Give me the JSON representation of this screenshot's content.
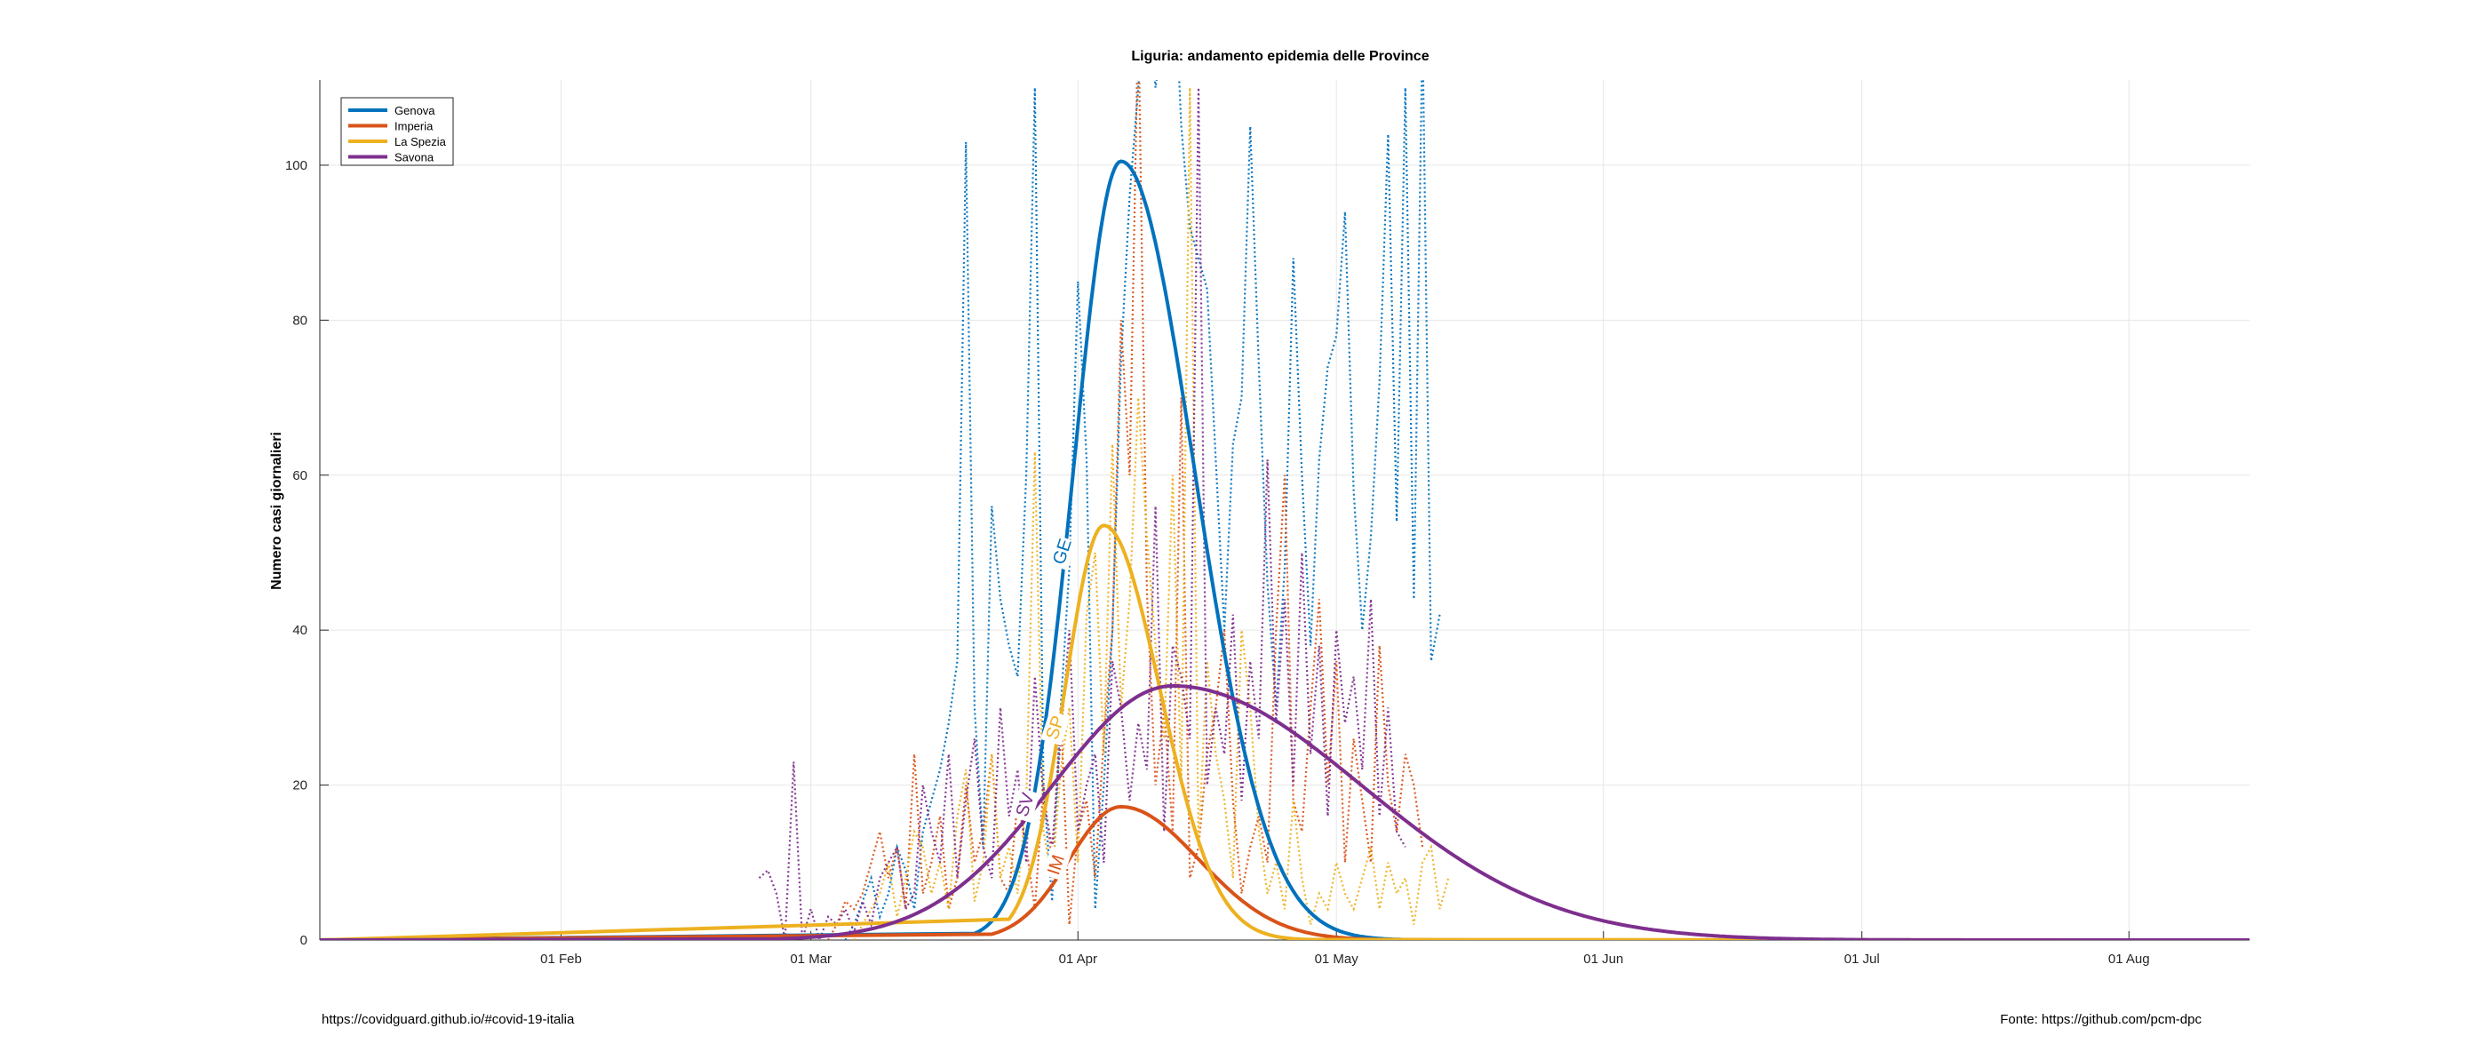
{
  "chart_data": {
    "type": "line",
    "title": "Liguria: andamento epidemia delle Province",
    "ylabel": "Numero casi giornalieri",
    "xlabel": "",
    "xlim": [
      "2020-01-04",
      "2020-08-15"
    ],
    "ylim": [
      0,
      111
    ],
    "xticks": [
      {
        "date": "2020-02-01",
        "label": "01 Feb"
      },
      {
        "date": "2020-03-01",
        "label": "01 Mar"
      },
      {
        "date": "2020-04-01",
        "label": "01 Apr"
      },
      {
        "date": "2020-05-01",
        "label": "01 May"
      },
      {
        "date": "2020-06-01",
        "label": "01 Jun"
      },
      {
        "date": "2020-07-01",
        "label": "01 Jul"
      },
      {
        "date": "2020-08-01",
        "label": "01 Aug"
      }
    ],
    "yticks": [
      0,
      20,
      40,
      60,
      80,
      100
    ],
    "grid": true,
    "legend_position": "top-left",
    "series": [
      {
        "name": "Genova",
        "short_label": "GE",
        "color": "#0072BD",
        "fit_peak_date": "2020-04-06",
        "fit_peak_value": 100.5,
        "fit_sigma_before": 5.5,
        "fit_sigma_after": 8.5,
        "fit_start": "2020-03-20",
        "fit_end": "2020-05-22",
        "daily_start": "2020-03-05",
        "daily": [
          0,
          2,
          5,
          8,
          3,
          6,
          12,
          9,
          4,
          14,
          18,
          22,
          28,
          36,
          103,
          30,
          12,
          56,
          44,
          38,
          34,
          60,
          110,
          20,
          5,
          30,
          48,
          85,
          62,
          4,
          20,
          40,
          75,
          96,
          110,
          125,
          110,
          118,
          130,
          105,
          92,
          88,
          84,
          62,
          40,
          64,
          70,
          105,
          74,
          46,
          30,
          48,
          88,
          60,
          38,
          62,
          74,
          78,
          94,
          58,
          40,
          52,
          72,
          104,
          54,
          110,
          44,
          118,
          36,
          42
        ]
      },
      {
        "name": "Imperia",
        "short_label": "IM",
        "color": "#D95319",
        "fit_peak_date": "2020-04-06",
        "fit_peak_value": 17.2,
        "fit_sigma_before": 6.0,
        "fit_sigma_after": 9.0,
        "fit_start": "2020-03-22",
        "fit_end": "2020-05-20",
        "daily_start": "2020-03-03",
        "daily": [
          0,
          2,
          5,
          4,
          6,
          10,
          14,
          8,
          12,
          4,
          24,
          6,
          10,
          16,
          4,
          8,
          20,
          10,
          14,
          24,
          8,
          6,
          18,
          12,
          4,
          20,
          10,
          30,
          2,
          14,
          18,
          8,
          26,
          40,
          80,
          60,
          120,
          45,
          20,
          30,
          14,
          70,
          8,
          12,
          24,
          30,
          40,
          18,
          6,
          12,
          16,
          10,
          40,
          60,
          18,
          14,
          30,
          44,
          20,
          36,
          10,
          26,
          18,
          10,
          38,
          20,
          14,
          24,
          20,
          12
        ]
      },
      {
        "name": "La Spezia",
        "short_label": "SP",
        "color": "#EDB120",
        "fit_peak_date": "2020-04-04",
        "fit_peak_value": 53.5,
        "fit_sigma_before": 4.5,
        "fit_sigma_after": 6.5,
        "fit_start": "2020-03-24",
        "fit_end": "2020-04-28",
        "daily_start": "2020-03-06",
        "daily": [
          0,
          2,
          4,
          6,
          10,
          3,
          8,
          14,
          12,
          6,
          10,
          4,
          16,
          22,
          5,
          10,
          24,
          8,
          12,
          6,
          18,
          63,
          14,
          8,
          22,
          30,
          10,
          42,
          50,
          24,
          64,
          30,
          44,
          70,
          52,
          38,
          26,
          60,
          20,
          110,
          12,
          36,
          24,
          18,
          8,
          40,
          30,
          14,
          6,
          10,
          4,
          18,
          8,
          2,
          6,
          4,
          10,
          6,
          4,
          8,
          12,
          4,
          10,
          6,
          8,
          2,
          10,
          12,
          4,
          8
        ]
      },
      {
        "name": "Savona",
        "short_label": "SV",
        "color": "#7E2F8E",
        "fit_peak_date": "2020-04-12",
        "fit_peak_value": 32.8,
        "fit_sigma_before": 14.0,
        "fit_sigma_after": 22.0,
        "fit_start": "2020-02-26",
        "fit_end": "2020-08-15",
        "daily_start": "2020-02-24",
        "daily": [
          8,
          9,
          6,
          0,
          23,
          0,
          4,
          0,
          3,
          2,
          4,
          1,
          5,
          2,
          8,
          10,
          12,
          4,
          6,
          20,
          14,
          10,
          24,
          8,
          18,
          26,
          12,
          8,
          30,
          16,
          22,
          10,
          34,
          18,
          12,
          26,
          40,
          14,
          20,
          24,
          10,
          36,
          30,
          18,
          28,
          22,
          56,
          14,
          38,
          34,
          26,
          110,
          20,
          30,
          24,
          42,
          18,
          36,
          26,
          62,
          28,
          44,
          20,
          50,
          24,
          38,
          16,
          40,
          28,
          34,
          22,
          44,
          16,
          30,
          14,
          12
        ]
      }
    ],
    "footer_left": "https://covidguard.github.io/#covid-19-italia",
    "footer_right": "Fonte: https://github.com/pcm-dpc"
  }
}
